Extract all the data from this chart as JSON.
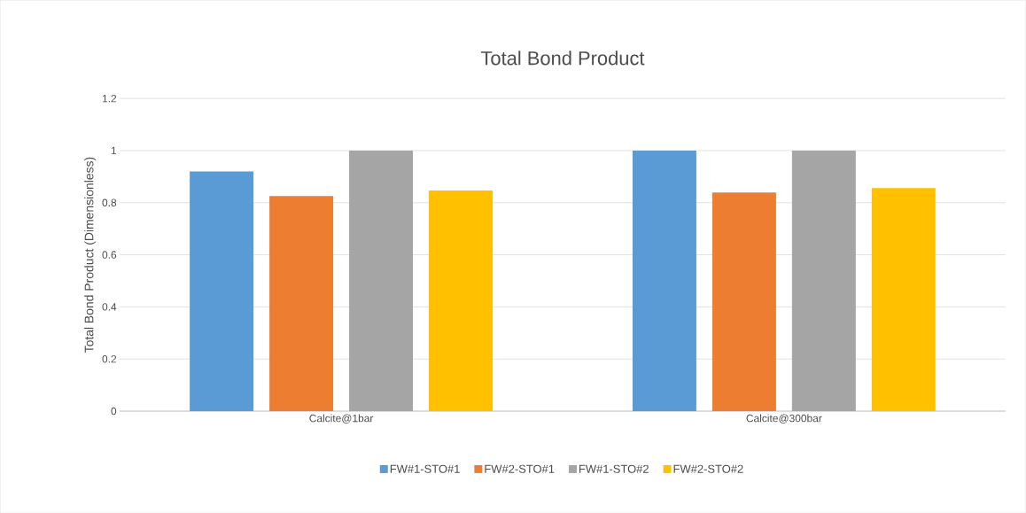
{
  "chart_data": {
    "type": "bar",
    "title": "Total Bond Product",
    "ylabel": "Total Bond Product (Dimensionless)",
    "categories": [
      "Calcite@1bar",
      "Calcite@300bar"
    ],
    "series": [
      {
        "name": "FW#1-STO#1",
        "color": "#5b9bd5",
        "values": [
          0.92,
          1.0
        ]
      },
      {
        "name": "FW#2-STO#1",
        "color": "#ed7d31",
        "values": [
          0.826,
          0.839
        ]
      },
      {
        "name": "FW#1-STO#2",
        "color": "#a5a5a5",
        "values": [
          1.0,
          1.0
        ]
      },
      {
        "name": "FW#2-STO#2",
        "color": "#ffc000",
        "values": [
          0.847,
          0.856
        ]
      }
    ],
    "ylim": [
      0,
      1.2
    ],
    "yticks": [
      0,
      0.2,
      0.4,
      0.6,
      0.8,
      1,
      1.2
    ],
    "grid": "y",
    "legend": "bottom"
  }
}
